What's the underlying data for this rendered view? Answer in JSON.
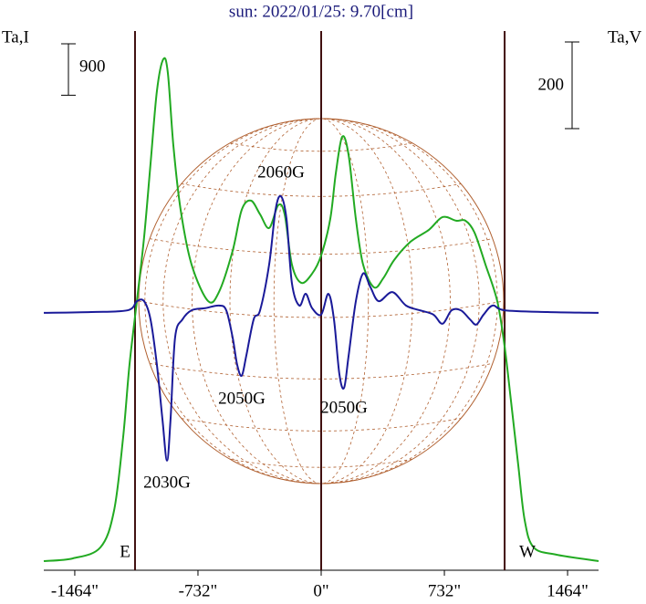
{
  "chart_data": {
    "type": "line",
    "title": "sun: 2022/01/25: 9.70[cm]",
    "ylabel": "Ta,I",
    "y2label": "Ta,V",
    "xlim": [
      -1648,
      1648
    ],
    "xticks": [
      {
        "value": -1464,
        "label": "-1464\""
      },
      {
        "value": -732,
        "label": "-732\""
      },
      {
        "value": 0,
        "label": "0\""
      },
      {
        "value": 732,
        "label": "732\""
      },
      {
        "value": 1464,
        "label": "1464\""
      }
    ],
    "ylim": [
      0,
      9500
    ],
    "y2lim": [
      -594,
      659
    ],
    "yscale_bar": 900,
    "y2scale_bar": 200,
    "vlines": [
      -1106,
      0,
      1090
    ],
    "limb_labels": [
      "E",
      "W"
    ],
    "annotations": [
      "2060G",
      "2050G",
      "2050G",
      "2030G"
    ],
    "series": [
      {
        "name": "Ta,I",
        "color": "#22aa22",
        "x": [
          -1648,
          -1475,
          -1312,
          -1231,
          -1177,
          -1139,
          -1095,
          -1052,
          -1014,
          -976,
          -938,
          -911,
          -878,
          -835,
          -770,
          -672,
          -607,
          -526,
          -472,
          -417,
          -363,
          -309,
          -255,
          -217,
          -174,
          -119,
          -54,
          0,
          54,
          87,
          125,
          163,
          206,
          249,
          314,
          369,
          434,
          531,
          640,
          721,
          802,
          857,
          911,
          976,
          1046,
          1090,
          1128,
          1171,
          1209,
          1263,
          1399,
          1648
        ],
        "values": [
          160,
          208,
          399,
          1038,
          2316,
          3593,
          4711,
          5829,
          7107,
          8384,
          8943,
          8704,
          7426,
          6308,
          5350,
          4711,
          4871,
          5590,
          6308,
          6468,
          6228,
          5989,
          6388,
          6228,
          5350,
          5030,
          5190,
          5510,
          6148,
          6947,
          7586,
          7266,
          6148,
          5350,
          4951,
          5110,
          5430,
          5749,
          5957,
          6180,
          6117,
          6117,
          5909,
          5350,
          4711,
          3912,
          2955,
          1837,
          878,
          399,
          272,
          160
        ]
      },
      {
        "name": "Ta,V",
        "color": "#1a1a99",
        "axis": "y2",
        "x": [
          -1648,
          -1366,
          -1149,
          -1095,
          -1052,
          -1014,
          -976,
          -943,
          -916,
          -895,
          -868,
          -824,
          -770,
          -689,
          -607,
          -564,
          -526,
          -499,
          -472,
          -445,
          -401,
          -363,
          -309,
          -271,
          -239,
          -206,
          -174,
          -130,
          -92,
          -54,
          0,
          43,
          76,
          108,
          136,
          163,
          206,
          249,
          293,
          342,
          423,
          504,
          586,
          667,
          721,
          775,
          830,
          884,
          922,
          965,
          1019,
          1090,
          1345,
          1648
        ],
        "values": [
          0,
          2,
          6,
          27,
          27,
          -15,
          -120,
          -246,
          -341,
          -246,
          -57,
          -15,
          6,
          11,
          17,
          6,
          -57,
          -120,
          -145,
          -99,
          -15,
          6,
          112,
          238,
          269,
          217,
          69,
          17,
          44,
          11,
          -4,
          44,
          -15,
          -141,
          -173,
          -99,
          27,
          91,
          59,
          27,
          48,
          17,
          6,
          -4,
          -25,
          6,
          6,
          -15,
          -27,
          -4,
          17,
          6,
          2,
          0
        ]
      }
    ]
  }
}
